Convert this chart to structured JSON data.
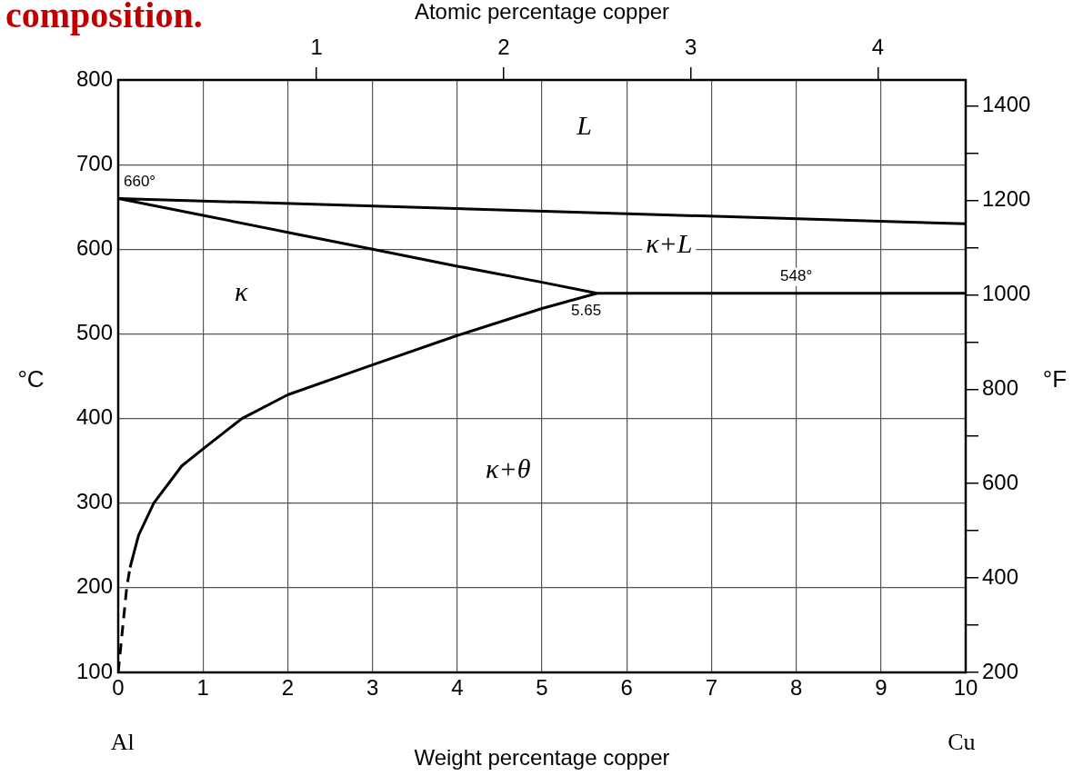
{
  "chart_data": {
    "type": "line",
    "title": "composition.",
    "xlabel": "Weight percentage copper",
    "x2label": "Atomic percentage copper",
    "ylabel": "°C",
    "y2label": "°F",
    "xlim": [
      0,
      10
    ],
    "xticks": [
      0,
      1,
      2,
      3,
      4,
      5,
      6,
      7,
      8,
      9,
      10
    ],
    "x2lim": [
      -0.06,
      4.47
    ],
    "x2ticks": [
      1,
      2,
      3,
      4
    ],
    "ylim": [
      100,
      800
    ],
    "yticks": [
      100,
      200,
      300,
      400,
      500,
      600,
      700,
      800
    ],
    "y2lim": [
      200,
      1455
    ],
    "y2ticks": [
      200,
      {
        "value": 300,
        "label": null
      },
      400,
      {
        "value": 500,
        "label": null
      },
      600,
      {
        "value": 700,
        "label": null
      },
      800,
      {
        "value": 900,
        "label": null
      },
      1000,
      {
        "value": 1100,
        "label": null
      },
      1200,
      {
        "value": 1300,
        "label": null
      },
      1400
    ],
    "grid": true,
    "legend": false,
    "marker": "none",
    "series": [
      {
        "color": "#000000",
        "x": [
          10,
          0,
          1,
          2,
          3,
          4,
          5,
          5.65,
          10
        ],
        "values": [
          630,
          660,
          640,
          620,
          600,
          580,
          561,
          548,
          548
        ]
      },
      {
        "color": "#000000",
        "x": [
          0.14,
          0.24,
          0.42,
          0.75,
          1,
          1.46,
          2,
          2.96,
          4,
          5,
          5.65
        ],
        "values": [
          224,
          262,
          300,
          344,
          364,
          400,
          428,
          462,
          498,
          530,
          548
        ]
      },
      {
        "color": "#000000",
        "line_style": "dashed",
        "x": [
          0,
          0.1,
          0.14
        ],
        "values": [
          100,
          200,
          224
        ]
      }
    ],
    "annotations": [
      {
        "text": "660°",
        "x": 0,
        "y": 660
      },
      {
        "text": "5.65",
        "x": 5.65,
        "y": 548
      },
      {
        "text": "548°",
        "x": 8,
        "y": 548
      },
      "L",
      "κ+L",
      "κ",
      "κ+θ",
      "Al",
      "Cu"
    ]
  }
}
